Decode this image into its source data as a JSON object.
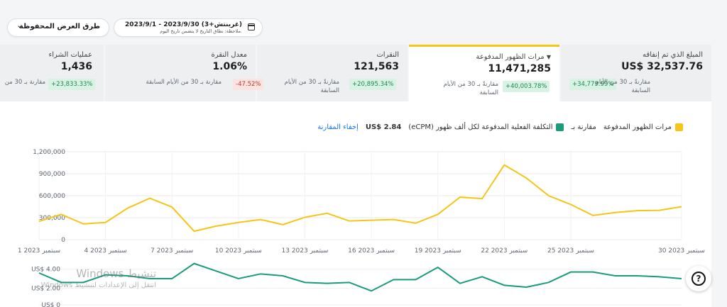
{
  "toolbar": {
    "views_label": "طرق العرض المحفوظة",
    "date_range": "2023/9/1 - 2023/9/30 (غرينتش+3)",
    "date_note": "ملاحظة: نطاق التاريخ لا يتضمن تاريخ اليوم."
  },
  "kpis": [
    {
      "title": "المبلغ الذي تم إنفاقه",
      "value": "US$ 32,537.76",
      "compare": "مقارنةً بـ 30 من الأيام السابقة",
      "change": "+34,779.99%",
      "trend": "up"
    },
    {
      "title": "مرات الظهور المدفوعة",
      "value": "11,471,285",
      "compare": "مقارنةً بـ 30 من الأيام السابقة",
      "change": "+40,003.78%",
      "trend": "up",
      "active": true
    },
    {
      "title": "النقرات",
      "value": "121,563",
      "compare": "مقارنةً بـ 30 من الأيام السابقة",
      "change": "+20,895.34%",
      "trend": "up"
    },
    {
      "title": "معدل النقرة",
      "value": "1.06%",
      "compare": "مقارنة بـ 30 من الأيام السابقة",
      "change": "-47.52%",
      "trend": "down"
    },
    {
      "title": "عمليات الشراء",
      "value": "1,436",
      "compare": "مقارنة بـ 30 من",
      "change": "+23,833.33%",
      "trend": "up"
    }
  ],
  "legend": {
    "primary": "مرات الظهور المدفوعة",
    "compare_label": "مقارنة بـ",
    "secondary": "التكلفة الفعلية المدفوعة لكل ألف ظهور (eCPM)",
    "secondary_value": "US$ 2.84",
    "hide_link": "إخفاء المقارنة",
    "primary_color": "#f5c518",
    "secondary_color": "#1a9b7b"
  },
  "help_icon": "question-circle-icon",
  "watermark": {
    "line1": "تنشيط Windows",
    "line2": "انتقل إلى الإعدادات لتنشيط Windows."
  },
  "chart_data": [
    {
      "type": "line",
      "series": [
        {
          "name": "مرات الظهور المدفوعة",
          "values": [
            250000,
            345000,
            215000,
            235000,
            430000,
            565000,
            445000,
            115000,
            185000,
            235000,
            275000,
            205000,
            305000,
            360000,
            255000,
            265000,
            275000,
            225000,
            345000,
            580000,
            560000,
            1020000,
            840000,
            600000,
            480000,
            330000,
            370000,
            395000,
            400000,
            450000
          ]
        }
      ],
      "x": [
        1,
        2,
        3,
        4,
        5,
        6,
        7,
        8,
        9,
        10,
        11,
        12,
        13,
        14,
        15,
        16,
        17,
        18,
        19,
        20,
        21,
        22,
        23,
        24,
        25,
        26,
        27,
        28,
        29,
        30
      ],
      "x_tick_labels": [
        {
          "day": 1,
          "label": "1 سبتمبر 2023"
        },
        {
          "day": 4,
          "label": "4 سبتمبر 2023"
        },
        {
          "day": 7,
          "label": "7 سبتمبر 2023"
        },
        {
          "day": 10,
          "label": "10 سبتمبر 2023"
        },
        {
          "day": 13,
          "label": "13 سبتمبر 2023"
        },
        {
          "day": 16,
          "label": "16 سبتمبر 2023"
        },
        {
          "day": 19,
          "label": "19 سبتمبر 2023"
        },
        {
          "day": 22,
          "label": "22 سبتمبر 2023"
        },
        {
          "day": 25,
          "label": "25 سبتمبر 2023"
        },
        {
          "day": 30,
          "label": "30 سبتمبر 2023"
        }
      ],
      "y_ticks": [
        "1,200,000",
        "900,000",
        "600,000",
        "300,000",
        "0"
      ],
      "ylim": [
        0,
        1200000
      ],
      "grid": true
    },
    {
      "type": "line",
      "series": [
        {
          "name": "التكلفة الفعلية المدفوعة لكل ألف ظهور (eCPM)",
          "values": [
            3.6,
            2.6,
            2.6,
            3.4,
            3.3,
            3.0,
            3.0,
            4.6,
            3.8,
            3.0,
            3.5,
            3.3,
            2.6,
            2.5,
            2.6,
            1.7,
            2.9,
            2.9,
            4.2,
            2.5,
            3.2,
            2.3,
            2.1,
            2.6,
            3.7,
            3.7,
            3.3,
            3.3,
            3.2,
            3.0
          ]
        }
      ],
      "y_ticks": [
        "US$ 4.00",
        "US$ 2.00",
        "US$ 0"
      ],
      "ylim": [
        0,
        4.5
      ]
    }
  ]
}
